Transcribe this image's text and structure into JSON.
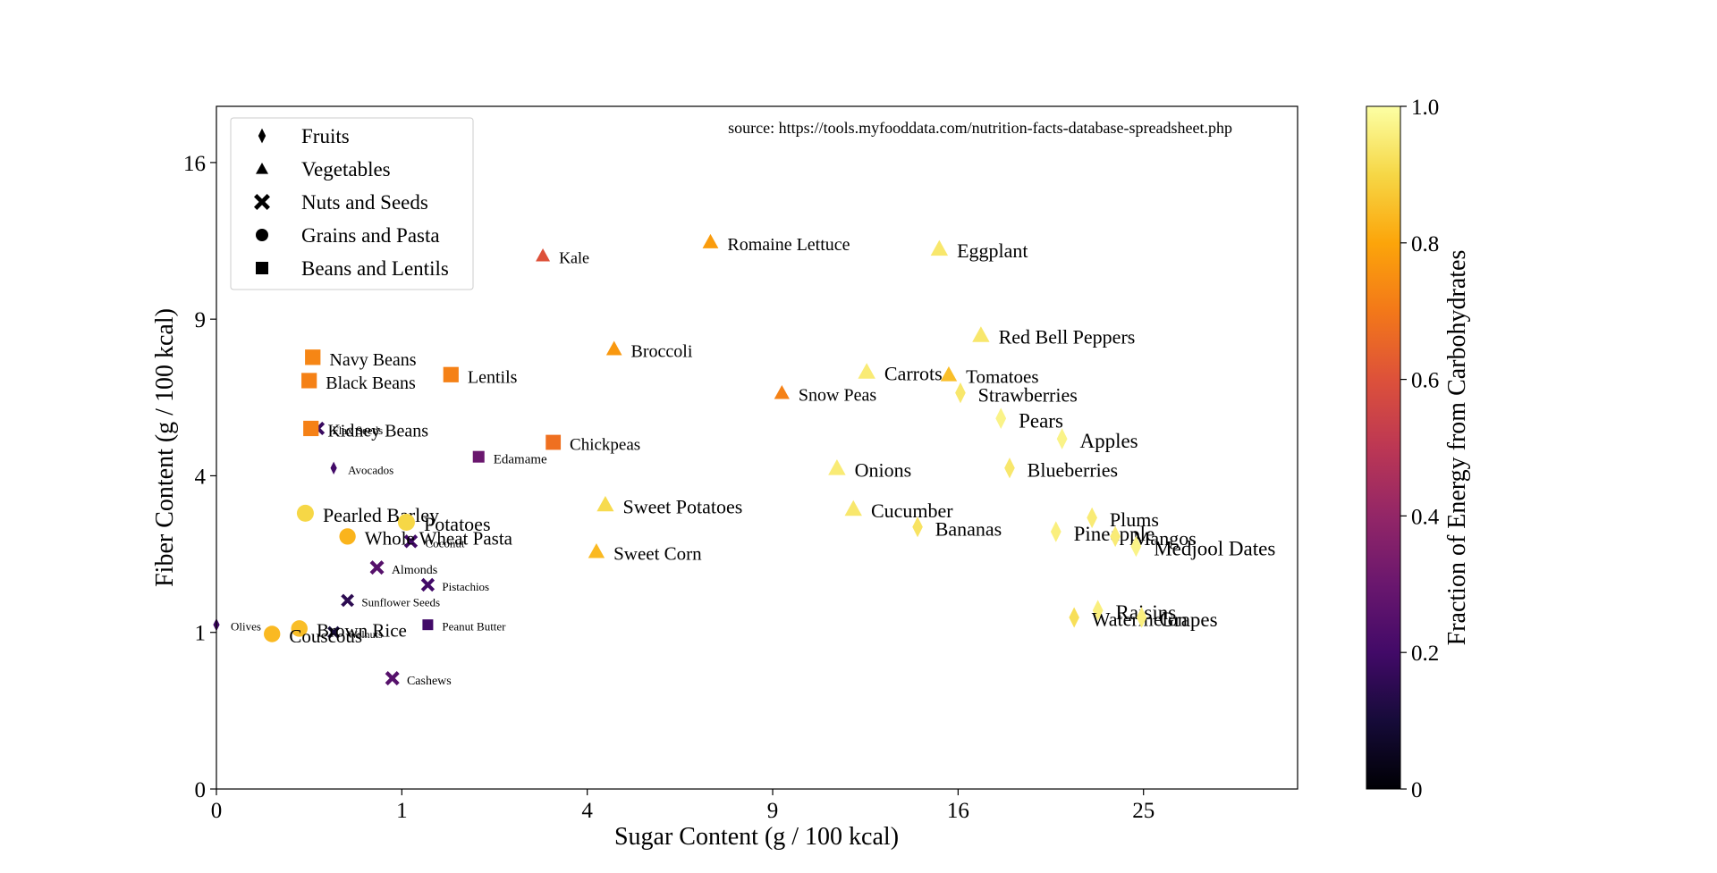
{
  "chart_data": {
    "type": "scatter",
    "xlabel": "Sugar Content (g / 100 kcal)",
    "ylabel": "Fiber Content (g / 100 kcal)",
    "x_scale": "sqrt",
    "y_scale": "sqrt",
    "xlim": [
      0,
      34
    ],
    "ylim": [
      0,
      19
    ],
    "x_ticks": [
      0,
      1,
      4,
      9,
      16,
      25
    ],
    "y_ticks": [
      0,
      1,
      4,
      9,
      16
    ],
    "grid": false,
    "annotation": "source: https://tools.myfooddata.com/nutrition-facts-database-spreadsheet.php",
    "legend": {
      "placement": "top-left",
      "entries": [
        {
          "label": "Fruits",
          "marker": "diamond"
        },
        {
          "label": "Vegetables",
          "marker": "triangle"
        },
        {
          "label": "Nuts and Seeds",
          "marker": "x"
        },
        {
          "label": "Grains and Pasta",
          "marker": "circle"
        },
        {
          "label": "Beans and Lentils",
          "marker": "square"
        }
      ]
    },
    "colorbar": {
      "label": "Fraction of Energy from Carbohydrates",
      "ticks": [
        "0",
        "0.2",
        "0.4",
        "0.6",
        "0.8",
        "1.0"
      ],
      "colormap": "inferno"
    },
    "points": [
      {
        "name": "Kale",
        "group": "Vegetables",
        "x": 3.1,
        "y": 11.6,
        "carb": 0.6
      },
      {
        "name": "Romaine Lettuce",
        "group": "Vegetables",
        "x": 7.1,
        "y": 12.2,
        "carb": 0.78
      },
      {
        "name": "Eggplant",
        "group": "Vegetables",
        "x": 15.2,
        "y": 11.9,
        "carb": 0.94
      },
      {
        "name": "Broccoli",
        "group": "Vegetables",
        "x": 4.6,
        "y": 7.9,
        "carb": 0.77
      },
      {
        "name": "Red Bell Peppers",
        "group": "Vegetables",
        "x": 17.0,
        "y": 8.4,
        "carb": 0.94
      },
      {
        "name": "Carrots",
        "group": "Vegetables",
        "x": 12.3,
        "y": 7.1,
        "carb": 0.95
      },
      {
        "name": "Tomatoes",
        "group": "Vegetables",
        "x": 15.6,
        "y": 7.0,
        "carb": 0.85
      },
      {
        "name": "Snow Peas",
        "group": "Vegetables",
        "x": 9.3,
        "y": 6.4,
        "carb": 0.72
      },
      {
        "name": "Onions",
        "group": "Vegetables",
        "x": 11.2,
        "y": 4.2,
        "carb": 0.95
      },
      {
        "name": "Cucumber",
        "group": "Vegetables",
        "x": 11.8,
        "y": 3.2,
        "carb": 0.94
      },
      {
        "name": "Sweet Potatoes",
        "group": "Vegetables",
        "x": 4.4,
        "y": 3.3,
        "carb": 0.91
      },
      {
        "name": "Sweet Corn",
        "group": "Vegetables",
        "x": 4.2,
        "y": 2.3,
        "carb": 0.84
      },
      {
        "name": "Strawberries",
        "group": "Fruits",
        "x": 16.1,
        "y": 6.4,
        "carb": 0.94
      },
      {
        "name": "Pears",
        "group": "Fruits",
        "x": 17.9,
        "y": 5.6,
        "carb": 0.97
      },
      {
        "name": "Apples",
        "group": "Fruits",
        "x": 20.8,
        "y": 5.0,
        "carb": 0.97
      },
      {
        "name": "Blueberries",
        "group": "Fruits",
        "x": 18.3,
        "y": 4.2,
        "carb": 0.94
      },
      {
        "name": "Bananas",
        "group": "Fruits",
        "x": 14.3,
        "y": 2.8,
        "carb": 0.93
      },
      {
        "name": "Pineapple",
        "group": "Fruits",
        "x": 20.5,
        "y": 2.7,
        "carb": 0.96
      },
      {
        "name": "Plums",
        "group": "Fruits",
        "x": 22.3,
        "y": 3.0,
        "carb": 0.95
      },
      {
        "name": "Mangos",
        "group": "Fruits",
        "x": 23.5,
        "y": 2.6,
        "carb": 0.95
      },
      {
        "name": "Medjool Dates",
        "group": "Fruits",
        "x": 24.6,
        "y": 2.4,
        "carb": 0.97
      },
      {
        "name": "Raisins",
        "group": "Fruits",
        "x": 22.6,
        "y": 1.3,
        "carb": 0.96
      },
      {
        "name": "Watermelon",
        "group": "Fruits",
        "x": 21.4,
        "y": 1.2,
        "carb": 0.92
      },
      {
        "name": "Grapes",
        "group": "Fruits",
        "x": 24.9,
        "y": 1.2,
        "carb": 0.96
      },
      {
        "name": "Avocados",
        "group": "Fruits",
        "x": 0.4,
        "y": 4.2,
        "carb": 0.2
      },
      {
        "name": "Olives",
        "group": "Fruits",
        "x": 0.0,
        "y": 1.1,
        "carb": 0.2
      },
      {
        "name": "Flax Seeds",
        "group": "Nuts and Seeds",
        "x": 0.3,
        "y": 5.3,
        "carb": 0.18
      },
      {
        "name": "Coconut",
        "group": "Nuts and Seeds",
        "x": 1.1,
        "y": 2.5,
        "carb": 0.2
      },
      {
        "name": "Almonds",
        "group": "Nuts and Seeds",
        "x": 0.75,
        "y": 2.0,
        "carb": 0.25
      },
      {
        "name": "Pistachios",
        "group": "Nuts and Seeds",
        "x": 1.3,
        "y": 1.7,
        "carb": 0.2
      },
      {
        "name": "Sunflower Seeds",
        "group": "Nuts and Seeds",
        "x": 0.5,
        "y": 1.45,
        "carb": 0.15
      },
      {
        "name": "Walnuts",
        "group": "Nuts and Seeds",
        "x": 0.4,
        "y": 1.0,
        "carb": 0.1
      },
      {
        "name": "Cashews",
        "group": "Nuts and Seeds",
        "x": 0.9,
        "y": 0.5,
        "carb": 0.25
      },
      {
        "name": "Pearled Barley",
        "group": "Grains and Pasta",
        "x": 0.23,
        "y": 3.1,
        "carb": 0.9
      },
      {
        "name": "Potatoes",
        "group": "Grains and Pasta",
        "x": 1.05,
        "y": 2.9,
        "carb": 0.9
      },
      {
        "name": "Whole Wheat Pasta",
        "group": "Grains and Pasta",
        "x": 0.5,
        "y": 2.6,
        "carb": 0.83
      },
      {
        "name": "Brown Rice",
        "group": "Grains and Pasta",
        "x": 0.2,
        "y": 1.05,
        "carb": 0.85
      },
      {
        "name": "Couscous",
        "group": "Grains and Pasta",
        "x": 0.09,
        "y": 0.98,
        "carb": 0.84
      },
      {
        "name": "Navy Beans",
        "group": "Beans and Lentils",
        "x": 0.27,
        "y": 7.6,
        "carb": 0.73
      },
      {
        "name": "Black Beans",
        "group": "Beans and Lentils",
        "x": 0.25,
        "y": 6.8,
        "carb": 0.72
      },
      {
        "name": "Kidney Beans",
        "group": "Beans and Lentils",
        "x": 0.26,
        "y": 5.3,
        "carb": 0.72
      },
      {
        "name": "Lentils",
        "group": "Beans and Lentils",
        "x": 1.6,
        "y": 7.0,
        "carb": 0.72
      },
      {
        "name": "Edamame",
        "group": "Beans and Lentils",
        "x": 2.0,
        "y": 4.5,
        "carb": 0.3
      },
      {
        "name": "Chickpeas",
        "group": "Beans and Lentils",
        "x": 3.3,
        "y": 4.9,
        "carb": 0.68
      },
      {
        "name": "Peanut Butter",
        "group": "Beans and Lentils",
        "x": 1.3,
        "y": 1.1,
        "carb": 0.2
      }
    ]
  }
}
